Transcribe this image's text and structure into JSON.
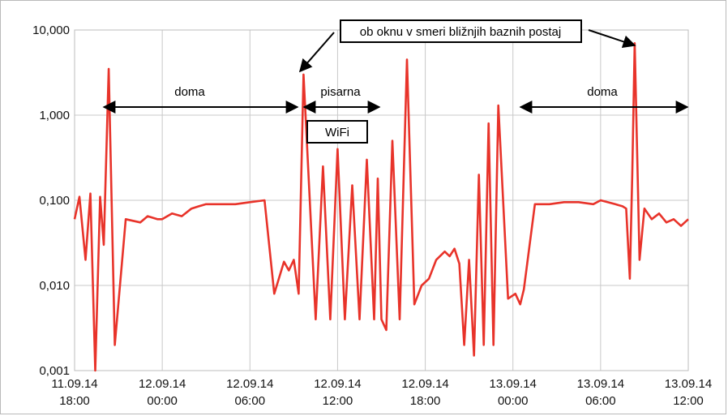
{
  "chart_data": {
    "type": "line",
    "title": "",
    "xlabel": "",
    "ylabel": "",
    "y_scale": "log",
    "ylim": [
      0.001,
      10
    ],
    "y_ticks": [
      "10,000",
      "1,000",
      "0,100",
      "0,010",
      "0,001"
    ],
    "x_ticks": [
      {
        "date": "11.09.14",
        "time": "18:00"
      },
      {
        "date": "12.09.14",
        "time": "00:00"
      },
      {
        "date": "12.09.14",
        "time": "06:00"
      },
      {
        "date": "12.09.14",
        "time": "12:00"
      },
      {
        "date": "12.09.14",
        "time": "18:00"
      },
      {
        "date": "13.09.14",
        "time": "00:00"
      },
      {
        "date": "13.09.14",
        "time": "06:00"
      },
      {
        "date": "13.09.14",
        "time": "12:00"
      }
    ],
    "xlim": [
      "11.09.14 18:00",
      "13.09.14 12:00"
    ],
    "grid": true,
    "legend": "none",
    "line_color": "#e8332a",
    "series": [
      {
        "x": [
          "11.09.14 18:00",
          "11.09.14 18:20",
          "11.09.14 18:45",
          "11.09.14 19:05",
          "11.09.14 19:25",
          "11.09.14 19:45",
          "11.09.14 20:00",
          "11.09.14 20:20",
          "11.09.14 20:45",
          "11.09.14 21:30",
          "11.09.14 22:30",
          "11.09.14 23:00",
          "11.09.14 23:40",
          "12.09.14 00:00",
          "12.09.14 00:40",
          "12.09.14 01:20",
          "12.09.14 02:00",
          "12.09.14 02:30",
          "12.09.14 03:00",
          "12.09.14 04:00",
          "12.09.14 05:00",
          "12.09.14 06:00",
          "12.09.14 07:00",
          "12.09.14 07:40",
          "12.09.14 08:20",
          "12.09.14 08:40",
          "12.09.14 09:00",
          "12.09.14 09:20",
          "12.09.14 09:40",
          "12.09.14 10:30",
          "12.09.14 11:00",
          "12.09.14 11:30",
          "12.09.14 12:00",
          "12.09.14 12:30",
          "12.09.14 13:00",
          "12.09.14 13:30",
          "12.09.14 14:00",
          "12.09.14 14:30",
          "12.09.14 14:45",
          "12.09.14 15:00",
          "12.09.14 15:20",
          "12.09.14 15:45",
          "12.09.14 16:15",
          "12.09.14 16:45",
          "12.09.14 17:15",
          "12.09.14 17:45",
          "12.09.14 18:15",
          "12.09.14 18:45",
          "12.09.14 19:20",
          "12.09.14 19:40",
          "12.09.14 20:00",
          "12.09.14 20:20",
          "12.09.14 20:40",
          "12.09.14 21:00",
          "12.09.14 21:20",
          "12.09.14 21:40",
          "12.09.14 22:00",
          "12.09.14 22:20",
          "12.09.14 22:40",
          "12.09.14 23:00",
          "12.09.14 23:40",
          "13.09.14 00:10",
          "13.09.14 00:30",
          "13.09.14 00:45",
          "13.09.14 01:30",
          "13.09.14 02:30",
          "13.09.14 03:30",
          "13.09.14 04:30",
          "13.09.14 05:30",
          "13.09.14 06:00",
          "13.09.14 07:00",
          "13.09.14 07:30",
          "13.09.14 07:45",
          "13.09.14 08:00",
          "13.09.14 08:10",
          "13.09.14 08:20",
          "13.09.14 08:40",
          "13.09.14 09:00",
          "13.09.14 09:30",
          "13.09.14 10:00",
          "13.09.14 10:30",
          "13.09.14 11:00",
          "13.09.14 11:30",
          "13.09.14 12:00"
        ],
        "y": [
          0.06,
          0.11,
          0.02,
          0.12,
          0.001,
          0.11,
          0.03,
          3.5,
          0.002,
          0.06,
          0.055,
          0.065,
          0.06,
          0.06,
          0.07,
          0.065,
          0.08,
          0.085,
          0.09,
          0.09,
          0.09,
          0.095,
          0.1,
          0.008,
          0.019,
          0.015,
          0.02,
          0.008,
          3.0,
          0.004,
          0.25,
          0.004,
          0.4,
          0.004,
          0.15,
          0.004,
          0.3,
          0.004,
          0.18,
          0.004,
          0.003,
          0.5,
          0.004,
          4.5,
          0.006,
          0.01,
          0.012,
          0.02,
          0.025,
          0.022,
          0.027,
          0.018,
          0.002,
          0.02,
          0.0015,
          0.2,
          0.002,
          0.8,
          0.002,
          1.3,
          0.007,
          0.008,
          0.006,
          0.009,
          0.09,
          0.09,
          0.095,
          0.095,
          0.09,
          0.1,
          0.09,
          0.085,
          0.08,
          0.012,
          0.2,
          7.0,
          0.02,
          0.08,
          0.06,
          0.07,
          0.055,
          0.06,
          0.05,
          0.06
        ]
      }
    ],
    "annotations": {
      "callout": "ob oknu v smeri bližnjih baznih postaj",
      "doma_1": "doma",
      "pisarna": "pisarna",
      "wifi": "WiFi",
      "doma_2": "doma"
    }
  }
}
